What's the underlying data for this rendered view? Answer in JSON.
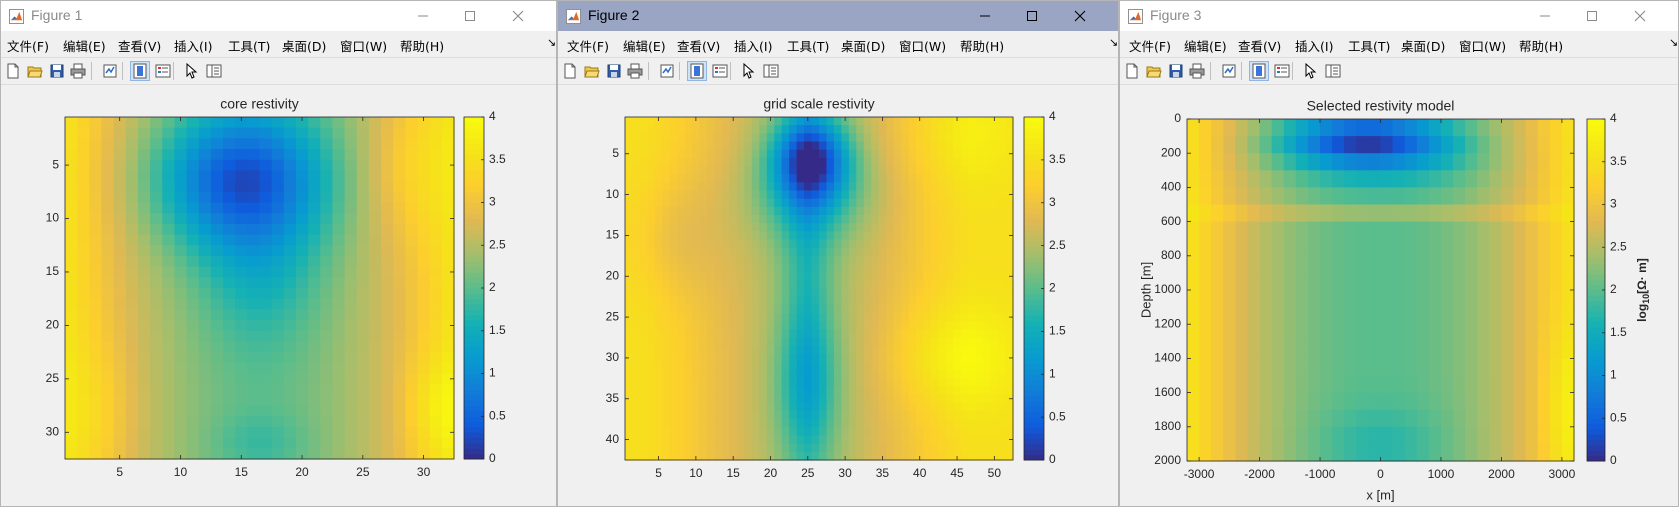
{
  "menu": [
    "文件(F)",
    "编辑(E)",
    "查看(V)",
    "插入(I)",
    "工具(T)",
    "桌面(D)",
    "窗口(W)",
    "帮助(H)"
  ],
  "menu_overflow": "↘",
  "toolbar_icons": [
    "new-figure-icon",
    "open-file-icon",
    "save-icon",
    "print-icon",
    "link-plot-icon",
    "colorbar-icon",
    "legend-icon",
    "edit-plot-arrow-icon",
    "property-inspector-icon"
  ],
  "window_controls": [
    "minimize-icon",
    "maximize-icon",
    "close-icon"
  ],
  "colormap": "parula",
  "windows": [
    {
      "title": "Figure 1",
      "active": false,
      "chart_data": {
        "type": "heatmap",
        "title": "core restivity",
        "xlabel": "",
        "ylabel": "",
        "colorbar_label": "",
        "xticks": [
          "5",
          "10",
          "15",
          "20",
          "25",
          "30"
        ],
        "yticks": [
          "5",
          "10",
          "15",
          "20",
          "25",
          "30"
        ],
        "colorbar_ticks": [
          "0",
          "0.5",
          "1",
          "1.5",
          "2",
          "2.5",
          "3",
          "3.5",
          "4"
        ],
        "xlim": [
          0.5,
          32.5
        ],
        "ylim": [
          0.5,
          32.5
        ],
        "y_reversed": true,
        "clim": [
          0,
          4
        ],
        "grid": [
          32,
          32
        ],
        "field": "core"
      }
    },
    {
      "title": "Figure 2",
      "active": true,
      "chart_data": {
        "type": "heatmap",
        "title": "grid scale restivity",
        "xlabel": "",
        "ylabel": "",
        "colorbar_label": "",
        "xticks": [
          "5",
          "10",
          "15",
          "20",
          "25",
          "30",
          "35",
          "40",
          "45",
          "50"
        ],
        "yticks": [
          "5",
          "10",
          "15",
          "20",
          "25",
          "30",
          "35",
          "40"
        ],
        "colorbar_ticks": [
          "0",
          "0.5",
          "1",
          "1.5",
          "2",
          "2.5",
          "3",
          "3.5",
          "4"
        ],
        "xlim": [
          0.5,
          52.5
        ],
        "ylim": [
          0.5,
          42.5
        ],
        "y_reversed": true,
        "clim": [
          0,
          4
        ],
        "grid": [
          52,
          42
        ],
        "field": "grid"
      }
    },
    {
      "title": "Figure 3",
      "active": false,
      "chart_data": {
        "type": "heatmap",
        "title": "Selected restivity model",
        "xlabel": "x [m]",
        "ylabel": "Depth [m]",
        "colorbar_label": "log10[Ω· m]",
        "colorbar_label_parts": [
          "log",
          "10",
          "[Ω· m]"
        ],
        "xticks": [
          "-3000",
          "-2000",
          "-1000",
          "0",
          "1000",
          "2000",
          "3000"
        ],
        "yticks": [
          "0",
          "200",
          "400",
          "600",
          "800",
          "1000",
          "1200",
          "1400",
          "1600",
          "1800",
          "2000"
        ],
        "colorbar_ticks": [
          "0",
          "0.5",
          "1",
          "1.5",
          "2",
          "2.5",
          "3",
          "3.5",
          "4"
        ],
        "xlim": [
          -3200,
          3200
        ],
        "ylim": [
          0,
          2000
        ],
        "y_reversed": true,
        "clim": [
          0,
          4
        ],
        "grid": [
          32,
          20
        ],
        "field": "model"
      }
    }
  ]
}
